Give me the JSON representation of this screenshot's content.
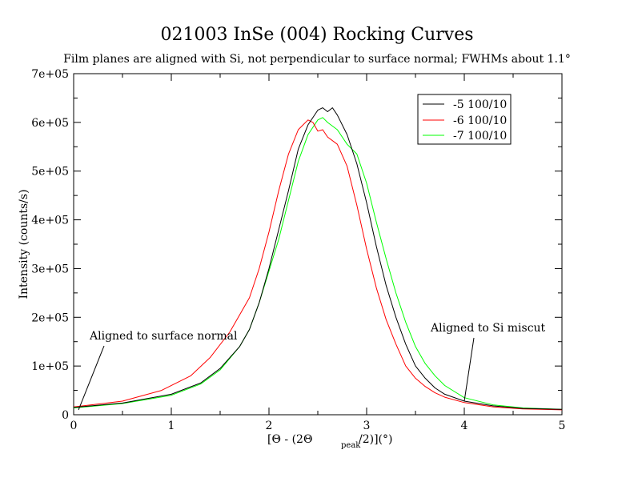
{
  "chart_data": {
    "type": "line",
    "title": "021003 InSe (004) Rocking Curves",
    "subtitle": "Film planes are aligned with Si, not perpendicular to surface normal; FWHMs about 1.1°",
    "ylabel": "Intensity (counts/s)",
    "xlabel": {
      "part1": "[Θ  - (2Θ",
      "sub": "peak",
      "part2": "/2)](°)"
    },
    "xlim": [
      0,
      5
    ],
    "ylim": [
      0,
      700000
    ],
    "x_ticks": [
      "0",
      "1",
      "2",
      "3",
      "4",
      "5"
    ],
    "y_ticks": [
      "0",
      "1e+05",
      "2e+05",
      "3e+05",
      "4e+05",
      "5e+05",
      "6e+05",
      "7e+05"
    ],
    "grid": false,
    "legend_position": "top-right",
    "series": [
      {
        "name": "-5 100/10",
        "color": "#000000",
        "x": [
          0.0,
          0.5,
          1.0,
          1.3,
          1.5,
          1.7,
          1.8,
          1.9,
          2.0,
          2.1,
          2.2,
          2.3,
          2.4,
          2.5,
          2.55,
          2.6,
          2.65,
          2.7,
          2.8,
          2.9,
          3.0,
          3.1,
          3.2,
          3.3,
          3.4,
          3.5,
          3.6,
          3.7,
          3.8,
          4.0,
          4.3,
          4.6,
          5.0
        ],
        "values": [
          15000,
          24000,
          42000,
          65000,
          95000,
          140000,
          175000,
          230000,
          300000,
          380000,
          460000,
          545000,
          595000,
          625000,
          630000,
          622000,
          630000,
          615000,
          575000,
          515000,
          435000,
          345000,
          265000,
          200000,
          145000,
          100000,
          75000,
          55000,
          42000,
          28000,
          18000,
          13000,
          11000
        ]
      },
      {
        "name": "-6 100/10",
        "color": "#ff0000",
        "x": [
          0.0,
          0.5,
          0.9,
          1.2,
          1.4,
          1.6,
          1.8,
          1.9,
          2.0,
          2.1,
          2.2,
          2.3,
          2.4,
          2.45,
          2.5,
          2.55,
          2.6,
          2.7,
          2.8,
          2.9,
          3.0,
          3.1,
          3.2,
          3.3,
          3.4,
          3.5,
          3.6,
          3.7,
          3.8,
          4.0,
          4.3,
          4.6,
          5.0
        ],
        "values": [
          16000,
          28000,
          50000,
          80000,
          118000,
          170000,
          240000,
          300000,
          375000,
          460000,
          535000,
          585000,
          605000,
          600000,
          582000,
          585000,
          570000,
          555000,
          510000,
          430000,
          340000,
          260000,
          195000,
          145000,
          100000,
          75000,
          58000,
          45000,
          36000,
          25000,
          16000,
          12000,
          10000
        ]
      },
      {
        "name": "-7 100/10",
        "color": "#00ff00",
        "x": [
          0.0,
          0.5,
          1.0,
          1.3,
          1.5,
          1.7,
          1.8,
          1.9,
          2.0,
          2.1,
          2.2,
          2.3,
          2.4,
          2.5,
          2.55,
          2.6,
          2.7,
          2.8,
          2.9,
          3.0,
          3.1,
          3.2,
          3.3,
          3.4,
          3.5,
          3.6,
          3.7,
          3.8,
          4.0,
          4.3,
          4.6,
          5.0
        ],
        "values": [
          14000,
          23000,
          40000,
          63000,
          92000,
          140000,
          175000,
          230000,
          295000,
          360000,
          440000,
          520000,
          575000,
          605000,
          610000,
          600000,
          585000,
          555000,
          535000,
          475000,
          395000,
          320000,
          250000,
          190000,
          140000,
          105000,
          80000,
          60000,
          35000,
          20000,
          14000,
          11000
        ]
      }
    ],
    "annotations": [
      {
        "text": "Aligned to surface normal",
        "arrow_to": [
          0.05,
          10000
        ]
      },
      {
        "text": "Aligned to Si miscut",
        "arrow_to": [
          4.0,
          28000
        ]
      }
    ]
  }
}
